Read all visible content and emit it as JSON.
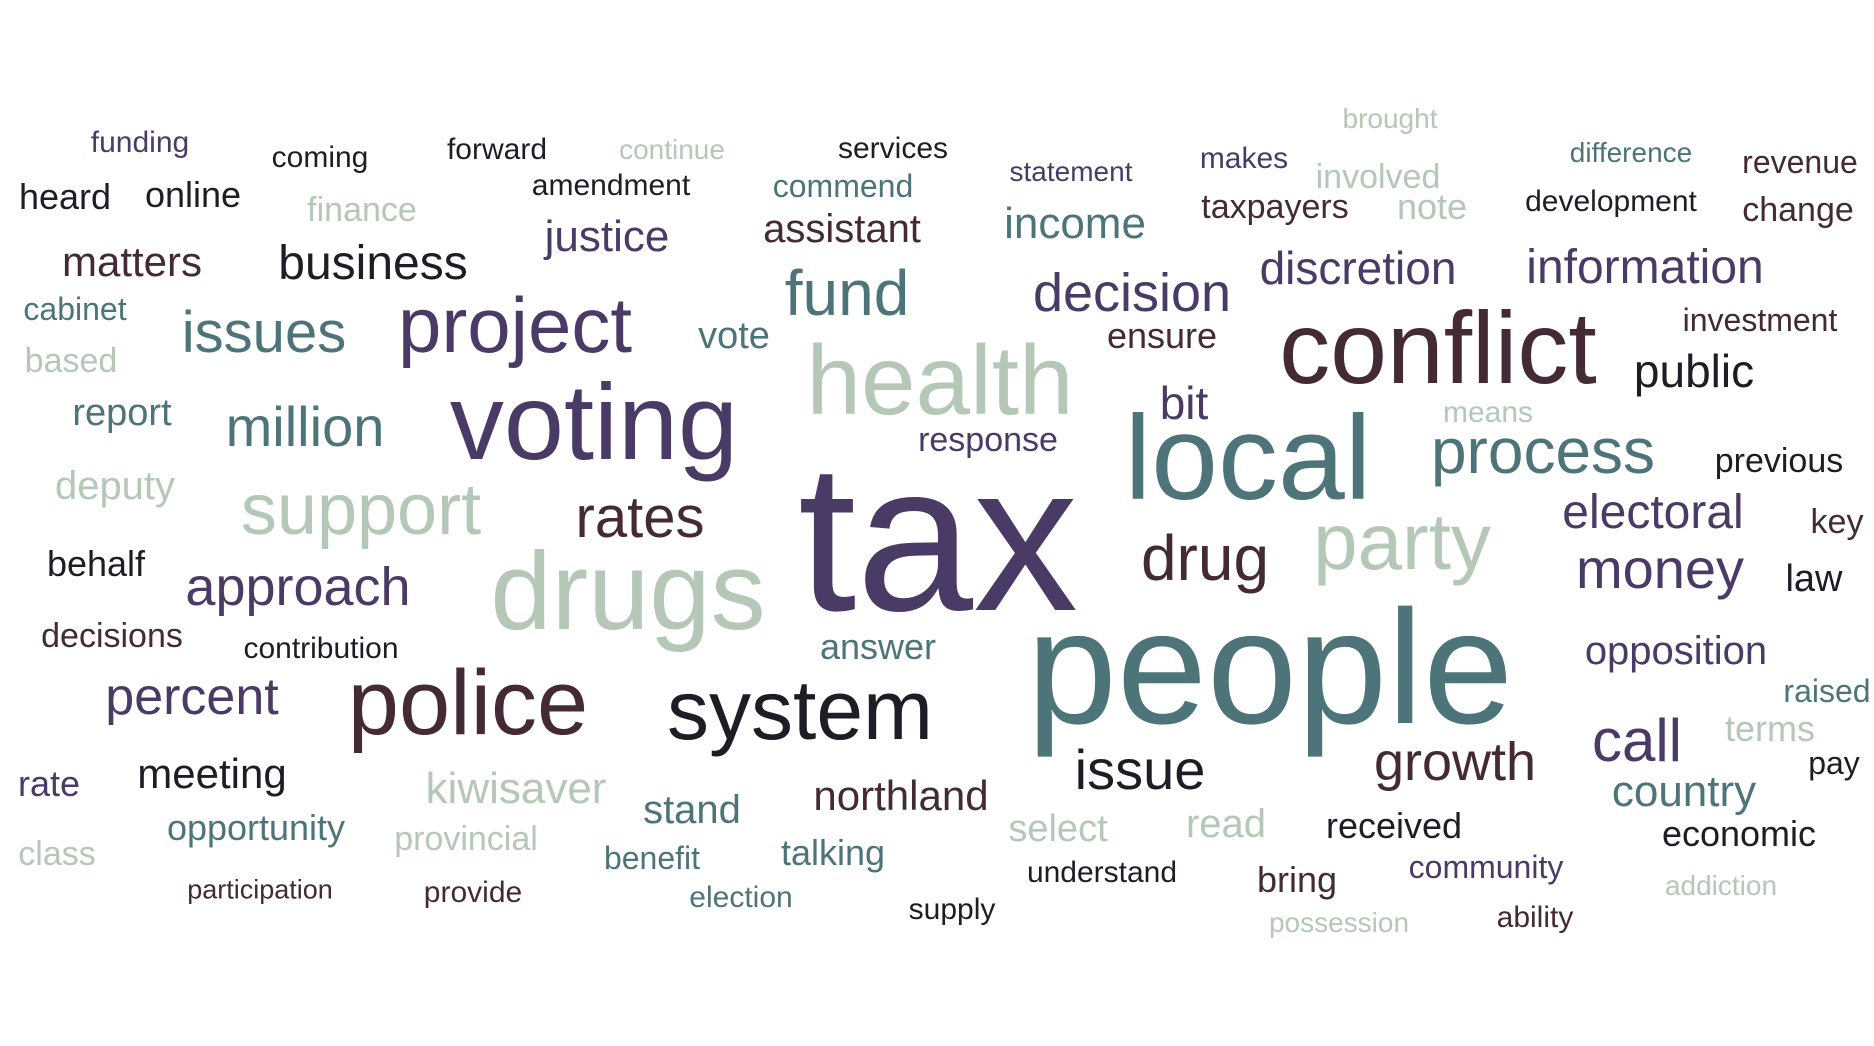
{
  "word_cloud": {
    "palette": [
      "#4a3a66",
      "#4d7478",
      "#432a34",
      "#b5c7b6",
      "#1f1c26"
    ],
    "words": [
      {
        "id": "w01",
        "text": "tax",
        "color": 1
      },
      {
        "id": "w02",
        "text": "people",
        "color": 2
      },
      {
        "id": "w03",
        "text": "voting",
        "color": 1
      },
      {
        "id": "w04",
        "text": "drugs",
        "color": 4
      },
      {
        "id": "w05",
        "text": "local",
        "color": 2
      },
      {
        "id": "w06",
        "text": "conflict",
        "color": 3
      },
      {
        "id": "w07",
        "text": "health",
        "color": 4
      },
      {
        "id": "w08",
        "text": "police",
        "color": 3
      },
      {
        "id": "w09",
        "text": "project",
        "color": 1
      },
      {
        "id": "w10",
        "text": "system",
        "color": 5
      },
      {
        "id": "w11",
        "text": "party",
        "color": 4
      },
      {
        "id": "w12",
        "text": "support",
        "color": 4
      },
      {
        "id": "w13",
        "text": "process",
        "color": 2
      },
      {
        "id": "w14",
        "text": "drug",
        "color": 3
      },
      {
        "id": "w15",
        "text": "fund",
        "color": 2
      },
      {
        "id": "w16",
        "text": "decision",
        "color": 1
      },
      {
        "id": "w17",
        "text": "growth",
        "color": 3
      },
      {
        "id": "w18",
        "text": "issue",
        "color": 5
      },
      {
        "id": "w19",
        "text": "money",
        "color": 1
      },
      {
        "id": "w20",
        "text": "call",
        "color": 1
      },
      {
        "id": "w21",
        "text": "issues",
        "color": 2
      },
      {
        "id": "w22",
        "text": "million",
        "color": 2
      },
      {
        "id": "w23",
        "text": "rates",
        "color": 3
      },
      {
        "id": "w24",
        "text": "approach",
        "color": 1
      },
      {
        "id": "w25",
        "text": "percent",
        "color": 1
      },
      {
        "id": "w26",
        "text": "electoral",
        "color": 1
      },
      {
        "id": "w27",
        "text": "information",
        "color": 1
      },
      {
        "id": "w28",
        "text": "discretion",
        "color": 1
      },
      {
        "id": "w29",
        "text": "business",
        "color": 5
      },
      {
        "id": "w30",
        "text": "public",
        "color": 5
      },
      {
        "id": "w31",
        "text": "kiwisaver",
        "color": 4
      },
      {
        "id": "w32",
        "text": "income",
        "color": 2
      },
      {
        "id": "w33",
        "text": "justice",
        "color": 1
      },
      {
        "id": "w34",
        "text": "northland",
        "color": 3
      },
      {
        "id": "w35",
        "text": "country",
        "color": 2
      },
      {
        "id": "w36",
        "text": "matters",
        "color": 3
      },
      {
        "id": "w37",
        "text": "assistant",
        "color": 3
      },
      {
        "id": "w38",
        "text": "opposition",
        "color": 1
      },
      {
        "id": "w39",
        "text": "bit",
        "color": 1
      },
      {
        "id": "w40",
        "text": "meeting",
        "color": 5
      },
      {
        "id": "w41",
        "text": "stand",
        "color": 2
      },
      {
        "id": "w42",
        "text": "deputy",
        "color": 4
      },
      {
        "id": "w43",
        "text": "vote",
        "color": 2
      },
      {
        "id": "w44",
        "text": "read",
        "color": 4
      },
      {
        "id": "w45",
        "text": "answer",
        "color": 2
      },
      {
        "id": "w46",
        "text": "select",
        "color": 4
      },
      {
        "id": "w47",
        "text": "talking",
        "color": 2
      },
      {
        "id": "w48",
        "text": "law",
        "color": 5
      },
      {
        "id": "w49",
        "text": "report",
        "color": 2
      },
      {
        "id": "w50",
        "text": "opportunity",
        "color": 2
      },
      {
        "id": "w51",
        "text": "behalf",
        "color": 5
      },
      {
        "id": "w52",
        "text": "received",
        "color": 5
      },
      {
        "id": "w53",
        "text": "economic",
        "color": 5
      },
      {
        "id": "w54",
        "text": "online",
        "color": 5
      },
      {
        "id": "w55",
        "text": "heard",
        "color": 5
      },
      {
        "id": "w56",
        "text": "ensure",
        "color": 3
      },
      {
        "id": "w57",
        "text": "rate",
        "color": 1
      },
      {
        "id": "w58",
        "text": "bring",
        "color": 3
      },
      {
        "id": "w59",
        "text": "previous",
        "color": 5
      },
      {
        "id": "w60",
        "text": "terms",
        "color": 4
      },
      {
        "id": "w61",
        "text": "change",
        "color": 3
      },
      {
        "id": "w62",
        "text": "investment",
        "color": 3
      },
      {
        "id": "w63",
        "text": "decisions",
        "color": 3
      },
      {
        "id": "w64",
        "text": "provincial",
        "color": 4
      },
      {
        "id": "w65",
        "text": "taxpayers",
        "color": 3
      },
      {
        "id": "w66",
        "text": "response",
        "color": 1
      },
      {
        "id": "w67",
        "text": "benefit",
        "color": 2
      },
      {
        "id": "w68",
        "text": "raised",
        "color": 2
      },
      {
        "id": "w69",
        "text": "finance",
        "color": 4
      },
      {
        "id": "w70",
        "text": "based",
        "color": 4
      },
      {
        "id": "w71",
        "text": "class",
        "color": 4
      },
      {
        "id": "w72",
        "text": "cabinet",
        "color": 2
      },
      {
        "id": "w73",
        "text": "note",
        "color": 4
      },
      {
        "id": "w74",
        "text": "involved",
        "color": 4
      },
      {
        "id": "w75",
        "text": "commend",
        "color": 2
      },
      {
        "id": "w76",
        "text": "community",
        "color": 1
      },
      {
        "id": "w77",
        "text": "revenue",
        "color": 3
      },
      {
        "id": "w78",
        "text": "key",
        "color": 3
      },
      {
        "id": "w79",
        "text": "pay",
        "color": 5
      },
      {
        "id": "w80",
        "text": "election",
        "color": 2
      },
      {
        "id": "w81",
        "text": "supply",
        "color": 5
      },
      {
        "id": "w82",
        "text": "understand",
        "color": 5
      },
      {
        "id": "w83",
        "text": "provide",
        "color": 3
      },
      {
        "id": "w84",
        "text": "contribution",
        "color": 5
      },
      {
        "id": "w85",
        "text": "coming",
        "color": 5
      },
      {
        "id": "w86",
        "text": "forward",
        "color": 5
      },
      {
        "id": "w87",
        "text": "services",
        "color": 5
      },
      {
        "id": "w88",
        "text": "makes",
        "color": 1
      },
      {
        "id": "w89",
        "text": "development",
        "color": 5
      },
      {
        "id": "w90",
        "text": "ability",
        "color": 3
      },
      {
        "id": "w91",
        "text": "amendment",
        "color": 5
      },
      {
        "id": "w92",
        "text": "statement",
        "color": 1
      },
      {
        "id": "w93",
        "text": "means",
        "color": 4
      },
      {
        "id": "w94",
        "text": "addiction",
        "color": 4
      },
      {
        "id": "w95",
        "text": "participation",
        "color": 3
      },
      {
        "id": "w96",
        "text": "funding",
        "color": 1
      },
      {
        "id": "w97",
        "text": "continue",
        "color": 4
      },
      {
        "id": "w98",
        "text": "brought",
        "color": 4
      },
      {
        "id": "w99",
        "text": "difference",
        "color": 2
      },
      {
        "id": "w100",
        "text": "possession",
        "color": 4
      }
    ]
  }
}
